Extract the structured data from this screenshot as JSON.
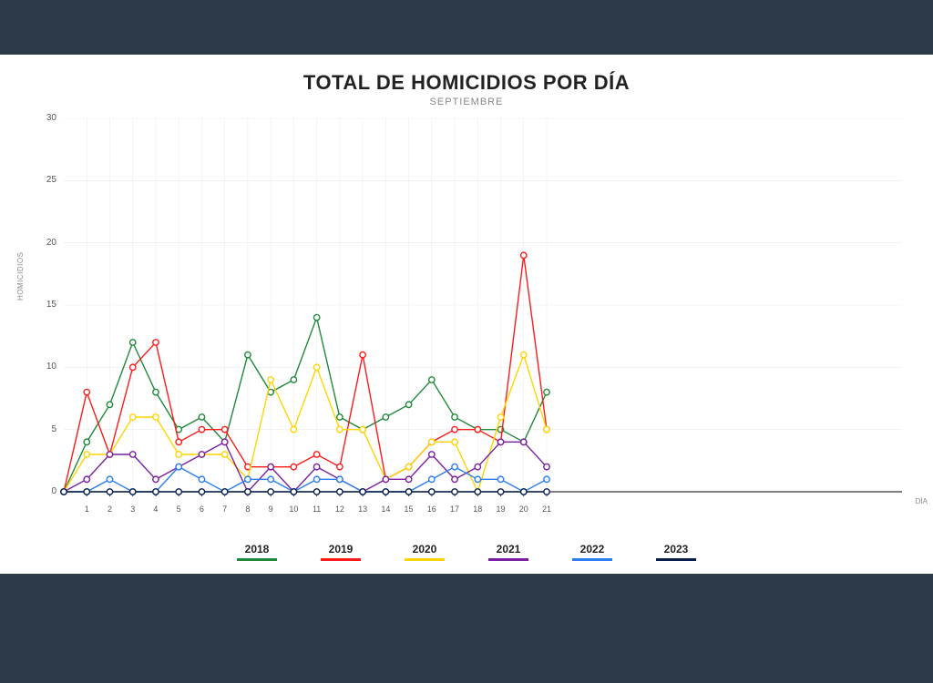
{
  "chart": {
    "type": "line",
    "title": "TOTAL DE HOMICIDIOS POR DÍA",
    "subtitle": "SEPTIEMBRE",
    "y_axis": {
      "label": "HOMICIDIOS",
      "min": 0,
      "max": 30,
      "step": 5
    },
    "x_axis": {
      "label": "DÍA",
      "min": 0,
      "max": 30,
      "labeled_max": 21
    },
    "background_color": "#ffffff",
    "page_background": "#2c3a47",
    "grid_color": "#e9e9e9",
    "axis_color": "#333333",
    "marker_radius": 3.2,
    "line_width": 1.4,
    "series": [
      {
        "name": "2018",
        "color": "#1f8a3b",
        "values": [
          0,
          4,
          7,
          12,
          8,
          5,
          6,
          4,
          11,
          8,
          9,
          14,
          6,
          5,
          6,
          7,
          9,
          6,
          5,
          5,
          4,
          8
        ]
      },
      {
        "name": "2019",
        "color": "#ff1a1a",
        "values": [
          0,
          8,
          3,
          10,
          12,
          4,
          5,
          5,
          2,
          2,
          2,
          3,
          2,
          11,
          1,
          2,
          4,
          5,
          5,
          4,
          19,
          5
        ]
      },
      {
        "name": "2020",
        "color": "#ffd400",
        "values": [
          0,
          3,
          3,
          6,
          6,
          3,
          3,
          3,
          1,
          9,
          5,
          10,
          5,
          5,
          1,
          2,
          4,
          4,
          0,
          6,
          11,
          5
        ]
      },
      {
        "name": "2021",
        "color": "#7a1fa2",
        "values": [
          0,
          1,
          3,
          3,
          1,
          2,
          3,
          4,
          0,
          2,
          0,
          2,
          1,
          0,
          1,
          1,
          3,
          1,
          2,
          4,
          4,
          2
        ]
      },
      {
        "name": "2022",
        "color": "#2b7ef0",
        "values": [
          0,
          0,
          1,
          0,
          0,
          2,
          1,
          0,
          1,
          1,
          0,
          1,
          1,
          0,
          0,
          0,
          1,
          2,
          1,
          1,
          0,
          1
        ]
      },
      {
        "name": "2023",
        "color": "#0a1f4d",
        "values": [
          0,
          0,
          0,
          0,
          0,
          0,
          0,
          0,
          0,
          0,
          0,
          0,
          0,
          0,
          0,
          0,
          0,
          0,
          0,
          0,
          0,
          0
        ]
      }
    ]
  }
}
